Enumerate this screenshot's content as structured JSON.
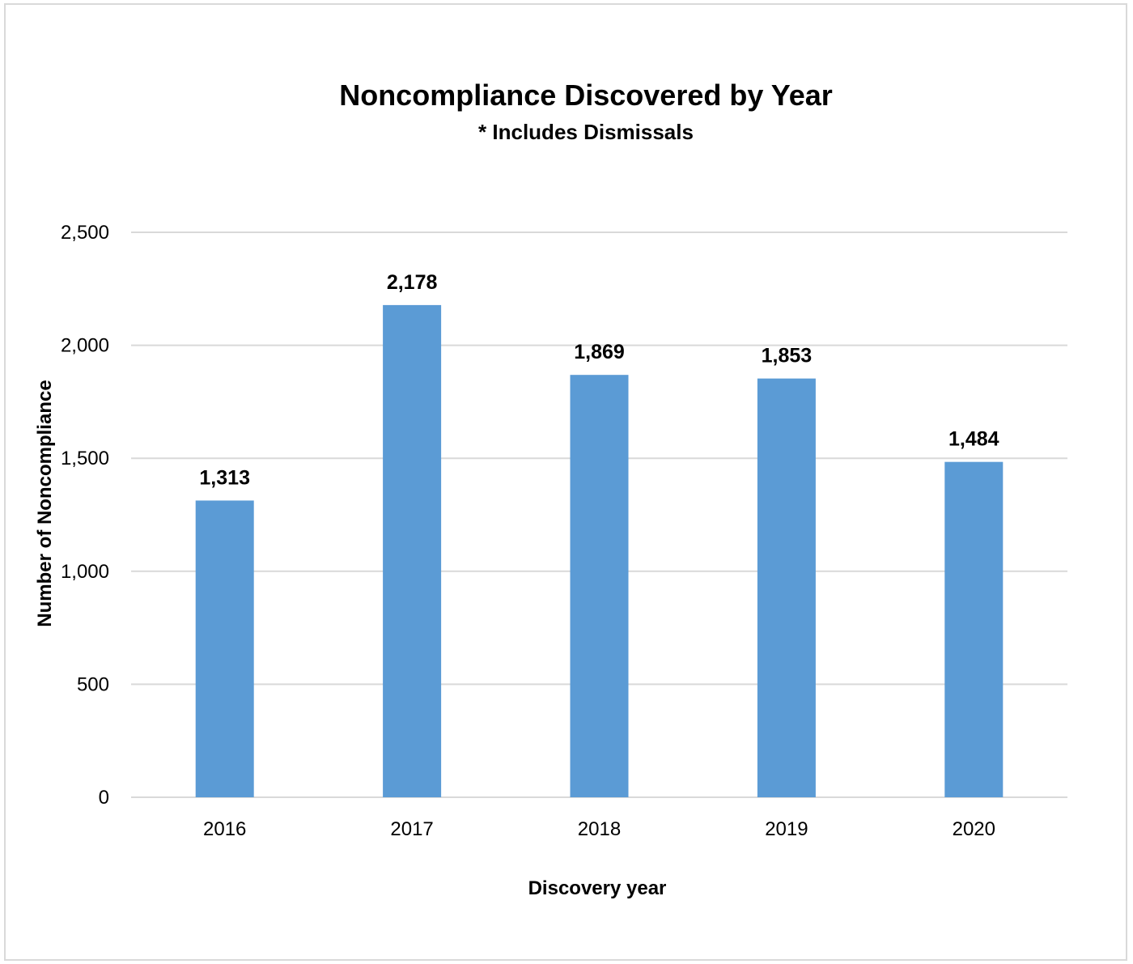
{
  "chart_data": {
    "type": "bar",
    "title": "Noncompliance Discovered by Year",
    "subtitle": "* Includes Dismissals",
    "xlabel": "Discovery year",
    "ylabel": "Number of Noncompliance",
    "categories": [
      "2016",
      "2017",
      "2018",
      "2019",
      "2020"
    ],
    "values": [
      1313,
      2178,
      1869,
      1853,
      1484
    ],
    "data_labels": [
      "1,313",
      "2,178",
      "1,869",
      "1,853",
      "1,484"
    ],
    "ylim": [
      0,
      2500
    ],
    "y_ticks": [
      0,
      500,
      1000,
      1500,
      2000,
      2500
    ],
    "y_tick_labels": [
      "0",
      "500",
      "1,000",
      "1,500",
      "2,000",
      "2,500"
    ],
    "grid": true,
    "legend": "none",
    "colors": {
      "bar": "#5B9BD5",
      "grid": "#d9d9d9",
      "axis": "#d9d9d9"
    }
  }
}
